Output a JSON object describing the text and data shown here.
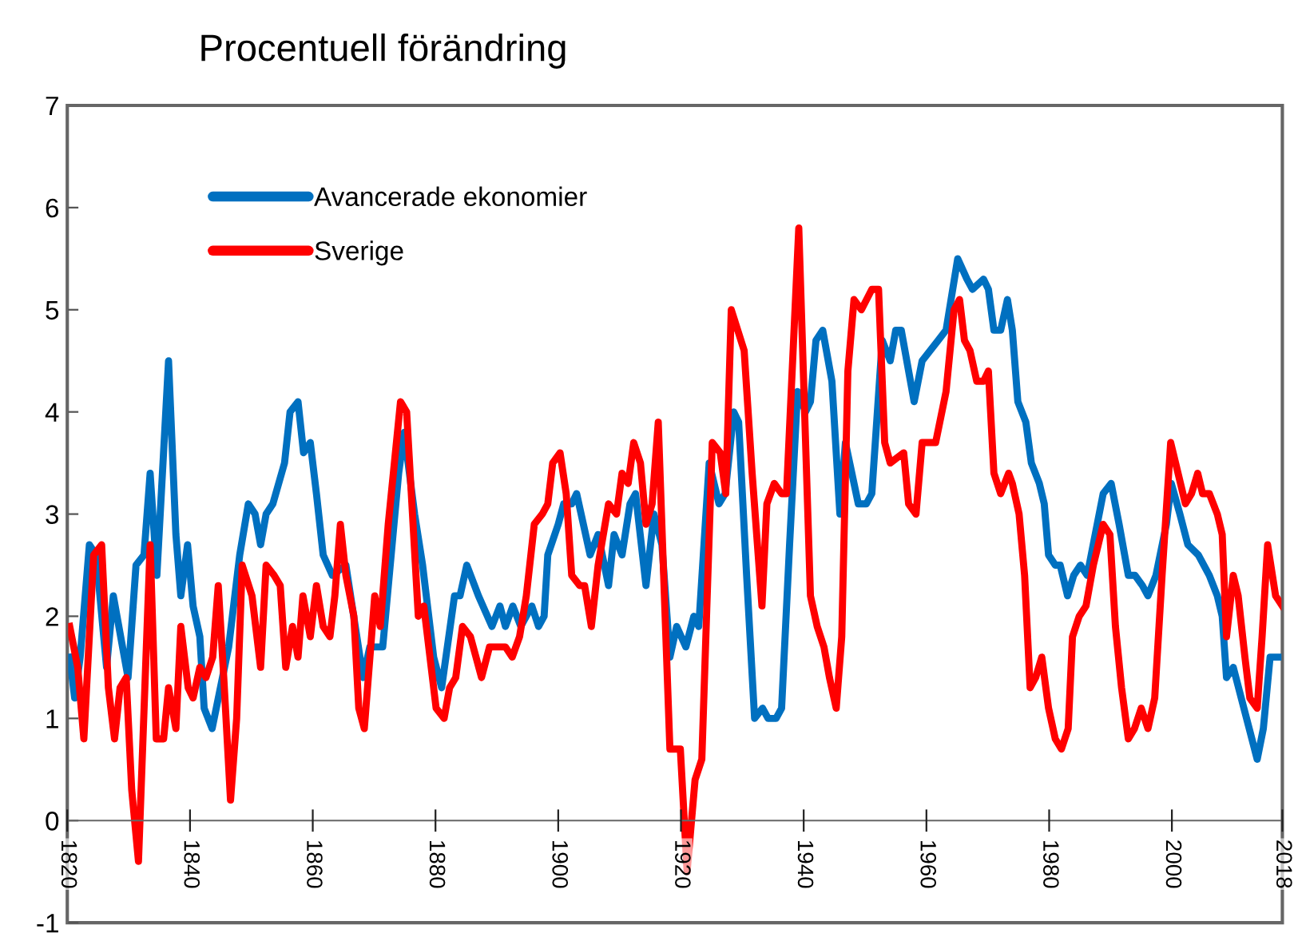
{
  "chart_data": {
    "type": "line",
    "title": "Procentuell förändring",
    "xlim": [
      1820,
      2018
    ],
    "xticks": [
      1820,
      1840,
      1860,
      1880,
      1900,
      1920,
      1940,
      1960,
      1980,
      2000,
      2018
    ],
    "ylim": [
      -1,
      7
    ],
    "yticks": [
      -1,
      0,
      1,
      2,
      3,
      4,
      5,
      6,
      7
    ],
    "grid": false,
    "legend": "top left",
    "marker": "none",
    "line_style": "solid",
    "series": [
      {
        "name": "Avancerade ekonomier",
        "color": "#0070c0",
        "x": [
          1820.4,
          1821.2,
          1822.1,
          1823.6,
          1824.7,
          1826.4,
          1827.5,
          1829.9,
          1831.2,
          1832.5,
          1833.5,
          1834.6,
          1836.5,
          1837.7,
          1838.5,
          1839.6,
          1840.5,
          1841.6,
          1842.3,
          1843.6,
          1846.3,
          1848.1,
          1849.5,
          1850.6,
          1851.5,
          1852.4,
          1853.5,
          1855.4,
          1856.3,
          1857.6,
          1858.5,
          1859.6,
          1860.6,
          1861.7,
          1863.2,
          1865.4,
          1868.2,
          1869.3,
          1871.4,
          1874,
          1874.9,
          1876.6,
          1877.9,
          1879.7,
          1881,
          1883.1,
          1884,
          1885.1,
          1887,
          1889.2,
          1890.5,
          1891.4,
          1892.6,
          1893.9,
          1895.7,
          1896.8,
          1897.7,
          1898.3,
          1900,
          1900.9,
          1902.2,
          1903,
          1905.2,
          1906.5,
          1908.2,
          1909.1,
          1910.4,
          1911.7,
          1912.6,
          1914.3,
          1915.6,
          1916.9,
          1918.2,
          1919.3,
          1920.8,
          1922.1,
          1922.9,
          1924.6,
          1926.2,
          1927.2,
          1928.6,
          1929.4,
          1930.7,
          1932,
          1933.3,
          1934.2,
          1935.5,
          1936.4,
          1937.7,
          1939,
          1940.3,
          1941.1,
          1942,
          1943.1,
          1944.6,
          1945.9,
          1946.8,
          1948.9,
          1950.2,
          1951.1,
          1952.8,
          1954.1,
          1955,
          1955.9,
          1958,
          1959.3,
          1960.6,
          1961.9,
          1963.2,
          1965.1,
          1966.6,
          1967.5,
          1969.3,
          1970.1,
          1971,
          1972.1,
          1973.2,
          1974,
          1974.9,
          1976.2,
          1977.1,
          1978.4,
          1979.2,
          1979.9,
          1981,
          1981.8,
          1983,
          1984,
          1985.1,
          1986.2,
          1987.5,
          1988.8,
          1990.1,
          1991.4,
          1992.9,
          1994,
          1995.2,
          1996.1,
          1997.4,
          1999.1,
          1999.9,
          2001.3,
          2002.6,
          2004.3,
          2006.1,
          2007.4,
          2008.2,
          2008.9,
          2010,
          2011.3,
          2012.6,
          2013.9,
          2014.9,
          2016,
          2016.9,
          2018
        ],
        "values": [
          1.6,
          1.2,
          1.6,
          2.7,
          2.6,
          1.5,
          2.2,
          1.4,
          2.5,
          2.6,
          3.4,
          2.4,
          4.5,
          2.8,
          2.2,
          2.7,
          2.1,
          1.8,
          1.1,
          0.9,
          1.7,
          2.6,
          3.1,
          3.0,
          2.7,
          3.0,
          3.1,
          3.5,
          4.0,
          4.1,
          3.6,
          3.7,
          3.2,
          2.6,
          2.4,
          2.5,
          1.4,
          1.7,
          1.7,
          3.4,
          3.8,
          3.0,
          2.5,
          1.6,
          1.3,
          2.2,
          2.2,
          2.5,
          2.2,
          1.9,
          2.1,
          1.9,
          2.1,
          1.9,
          2.1,
          1.9,
          2.0,
          2.6,
          2.9,
          3.1,
          3.1,
          3.2,
          2.6,
          2.8,
          2.3,
          2.8,
          2.6,
          3.1,
          3.2,
          2.3,
          3.0,
          2.7,
          1.6,
          1.9,
          1.7,
          2.0,
          1.9,
          3.5,
          3.1,
          3.2,
          4.0,
          3.9,
          2.4,
          1.0,
          1.1,
          1.0,
          1.0,
          1.1,
          2.7,
          4.2,
          4.0,
          4.1,
          4.7,
          4.8,
          4.3,
          3.0,
          3.7,
          3.1,
          3.1,
          3.2,
          4.7,
          4.5,
          4.8,
          4.8,
          4.1,
          4.5,
          4.6,
          4.7,
          4.8,
          5.5,
          5.3,
          5.2,
          5.3,
          5.2,
          4.8,
          4.8,
          5.1,
          4.8,
          4.1,
          3.9,
          3.5,
          3.3,
          3.1,
          2.6,
          2.5,
          2.5,
          2.2,
          2.4,
          2.5,
          2.4,
          2.8,
          3.2,
          3.3,
          2.9,
          2.4,
          2.4,
          2.3,
          2.2,
          2.4,
          2.9,
          3.3,
          3.0,
          2.7,
          2.6,
          2.4,
          2.2,
          2.0,
          1.4,
          1.5,
          1.2,
          0.9,
          0.6,
          0.9,
          1.6,
          1.6,
          1.6
        ]
      },
      {
        "name": "Sverige",
        "color": "#ff0000",
        "x": [
          1820.4,
          1821.7,
          1822.7,
          1824.3,
          1825.6,
          1826.7,
          1827.7,
          1828.6,
          1829.6,
          1830.5,
          1831.6,
          1832.7,
          1833.5,
          1834.5,
          1835.7,
          1836.5,
          1837.7,
          1838.5,
          1839.7,
          1840.5,
          1841.6,
          1842.6,
          1843.7,
          1844.6,
          1845.5,
          1846.6,
          1847.6,
          1848.5,
          1850.1,
          1851.5,
          1852.4,
          1853.7,
          1854.7,
          1855.6,
          1856.7,
          1857.6,
          1858.4,
          1859.6,
          1860.6,
          1861.7,
          1862.8,
          1863.6,
          1864.5,
          1865.4,
          1866.7,
          1867.5,
          1868.4,
          1870.1,
          1871,
          1872.3,
          1874.3,
          1875.3,
          1877.2,
          1878.1,
          1880.1,
          1881.4,
          1882.3,
          1883.3,
          1884.4,
          1885.7,
          1887.5,
          1888.8,
          1890.5,
          1891.4,
          1892.5,
          1893.7,
          1894.8,
          1896.1,
          1897.4,
          1898.3,
          1899.1,
          1900.3,
          1901.3,
          1902.2,
          1903.5,
          1904.3,
          1905.4,
          1906.5,
          1908.2,
          1909.5,
          1910.4,
          1911.4,
          1912.3,
          1913.4,
          1914.3,
          1915.3,
          1916.3,
          1917.3,
          1918.2,
          1919.9,
          1921,
          1922.3,
          1923.4,
          1925.1,
          1926.4,
          1927.3,
          1928.2,
          1930.3,
          1931.6,
          1933.2,
          1934,
          1935.2,
          1936.4,
          1937.2,
          1939.2,
          1941.1,
          1942.2,
          1943.3,
          1944.2,
          1945.3,
          1946.2,
          1947.2,
          1948.2,
          1949.4,
          1951.1,
          1952.2,
          1953.2,
          1954.1,
          1956.3,
          1957.1,
          1958.3,
          1959.3,
          1960.6,
          1961.5,
          1963.2,
          1964.5,
          1965.4,
          1966.2,
          1967.1,
          1968.2,
          1969.3,
          1970.1,
          1971,
          1972.1,
          1973.4,
          1974,
          1975.1,
          1976,
          1976.9,
          1977.8,
          1978.8,
          1979.9,
          1981,
          1982,
          1983.1,
          1983.8,
          1984.9,
          1986,
          1987.2,
          1988.8,
          1989.9,
          1990.8,
          1991.8,
          1992.9,
          1993.9,
          1995,
          1996.1,
          1997.2,
          1998.4,
          1999.8,
          2001,
          2002.2,
          2003.2,
          2004.2,
          2005,
          2006.1,
          2007.4,
          2008.2,
          2008.9,
          2010,
          2010.8,
          2011.9,
          2012.7,
          2013.9,
          2014.7,
          2015.6,
          2016.9,
          2018
        ],
        "values": [
          1.9,
          1.5,
          0.8,
          2.6,
          2.7,
          1.3,
          0.8,
          1.3,
          1.4,
          0.3,
          -0.4,
          1.4,
          2.7,
          0.8,
          0.8,
          1.3,
          0.9,
          1.9,
          1.3,
          1.2,
          1.5,
          1.4,
          1.6,
          2.3,
          1.4,
          0.2,
          1.0,
          2.5,
          2.2,
          1.5,
          2.5,
          2.4,
          2.3,
          1.5,
          1.9,
          1.6,
          2.2,
          1.8,
          2.3,
          1.9,
          1.8,
          2.2,
          2.9,
          2.4,
          2.0,
          1.1,
          0.9,
          2.2,
          1.9,
          2.9,
          4.1,
          4.0,
          2.0,
          2.1,
          1.1,
          1.0,
          1.3,
          1.4,
          1.9,
          1.8,
          1.4,
          1.7,
          1.7,
          1.7,
          1.6,
          1.8,
          2.2,
          2.9,
          3.0,
          3.1,
          3.5,
          3.6,
          3.2,
          2.4,
          2.3,
          2.3,
          1.9,
          2.5,
          3.1,
          3.0,
          3.4,
          3.3,
          3.7,
          3.5,
          2.9,
          3.1,
          3.9,
          2.2,
          0.7,
          0.7,
          -0.5,
          0.4,
          0.6,
          3.7,
          3.6,
          3.2,
          5.0,
          4.6,
          3.4,
          2.1,
          3.1,
          3.3,
          3.2,
          3.2,
          5.8,
          2.2,
          1.9,
          1.7,
          1.4,
          1.1,
          1.8,
          4.4,
          5.1,
          5.0,
          5.2,
          5.2,
          3.7,
          3.5,
          3.6,
          3.1,
          3.0,
          3.7,
          3.7,
          3.7,
          4.2,
          5.0,
          5.1,
          4.7,
          4.6,
          4.3,
          4.3,
          4.4,
          3.4,
          3.2,
          3.4,
          3.3,
          3.0,
          2.4,
          1.3,
          1.4,
          1.6,
          1.1,
          0.8,
          0.7,
          0.9,
          1.8,
          2.0,
          2.1,
          2.5,
          2.9,
          2.8,
          1.9,
          1.3,
          0.8,
          0.9,
          1.1,
          0.9,
          1.2,
          2.4,
          3.7,
          3.4,
          3.1,
          3.2,
          3.4,
          3.2,
          3.2,
          3.0,
          2.8,
          1.8,
          2.4,
          2.2,
          1.6,
          1.2,
          1.1,
          1.8,
          2.7,
          2.2,
          2.1
        ]
      }
    ]
  }
}
